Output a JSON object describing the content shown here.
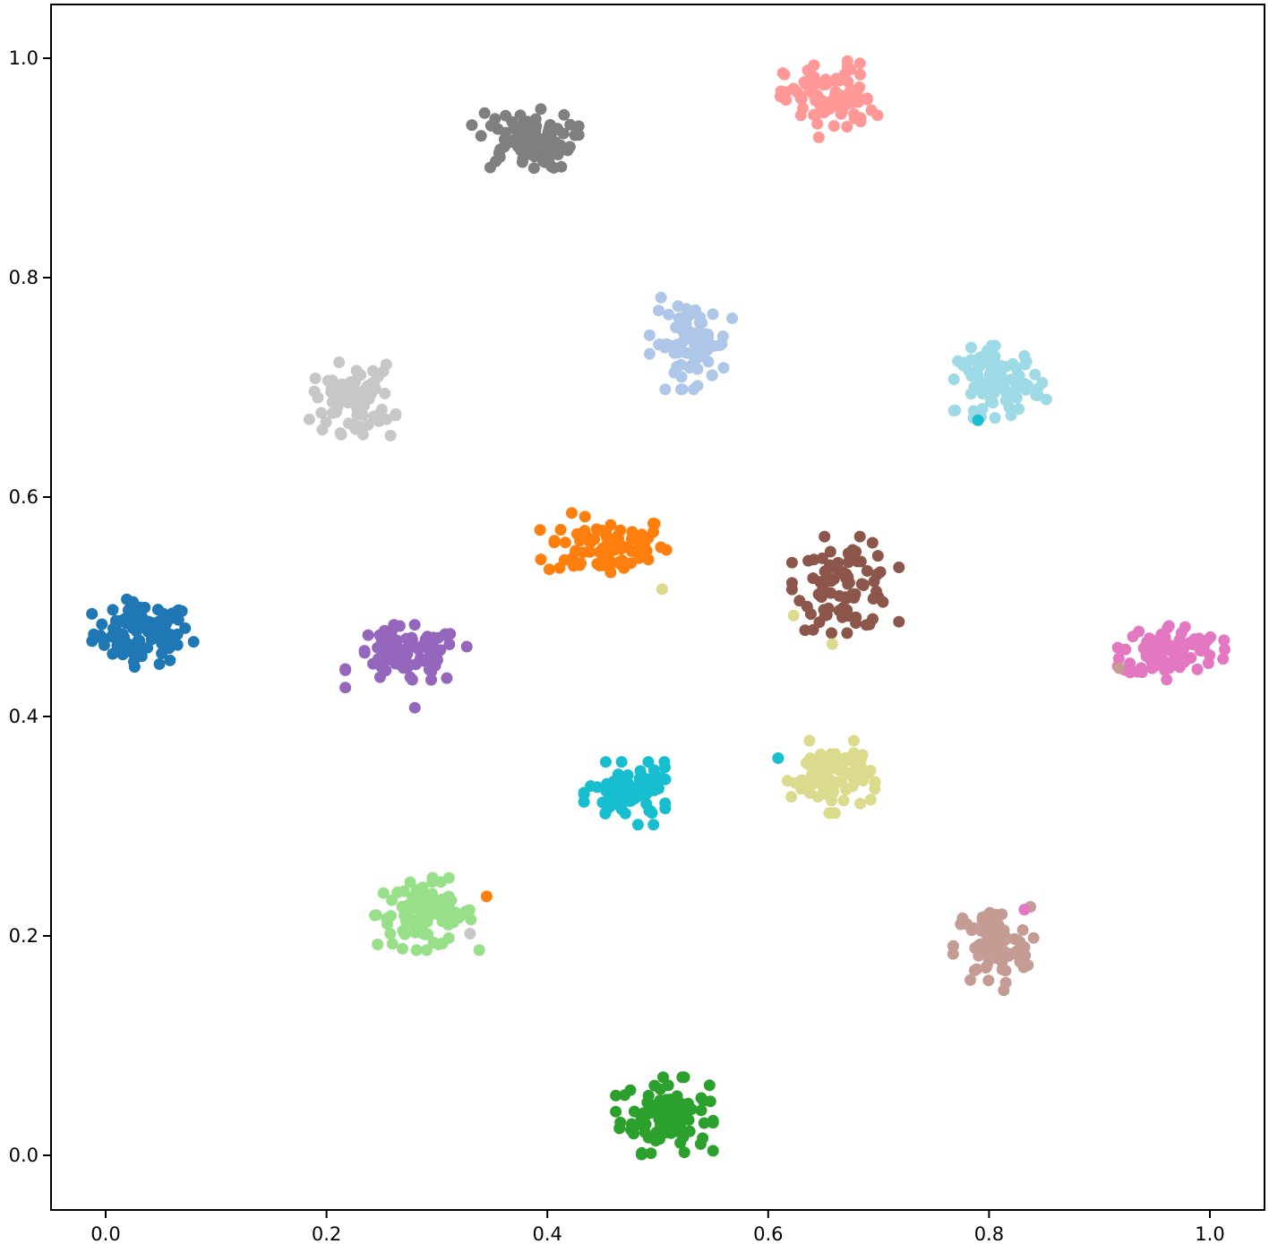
{
  "chart_data": {
    "type": "scatter",
    "title": "",
    "xlabel": "",
    "ylabel": "",
    "xlim": [
      -0.05,
      1.05
    ],
    "ylim": [
      -0.05,
      1.05
    ],
    "x_ticks": [
      "0.0",
      "0.2",
      "0.4",
      "0.6",
      "0.8",
      "1.0"
    ],
    "y_ticks": [
      "0.0",
      "0.2",
      "0.4",
      "0.6",
      "0.8",
      "1.0"
    ],
    "grid": false,
    "legend": "none",
    "clusters": [
      {
        "color": "#1f77b4",
        "center": [
          0.033,
          0.476
        ],
        "spread": [
          0.022,
          0.014
        ],
        "count": 90
      },
      {
        "color": "#ff7f0e",
        "center": [
          0.455,
          0.555
        ],
        "spread": [
          0.028,
          0.014
        ],
        "count": 85
      },
      {
        "color": "#2ca02c",
        "center": [
          0.506,
          0.036
        ],
        "spread": [
          0.02,
          0.016
        ],
        "count": 95
      },
      {
        "color": "#98df8a",
        "center": [
          0.29,
          0.22
        ],
        "spread": [
          0.022,
          0.015
        ],
        "count": 95
      },
      {
        "color": "#9467bd",
        "center": [
          0.272,
          0.455
        ],
        "spread": [
          0.025,
          0.013
        ],
        "count": 90
      },
      {
        "color": "#8c564b",
        "center": [
          0.67,
          0.52
        ],
        "spread": [
          0.022,
          0.02
        ],
        "count": 90
      },
      {
        "color": "#c49c94",
        "center": [
          0.803,
          0.19
        ],
        "spread": [
          0.017,
          0.018
        ],
        "count": 80
      },
      {
        "color": "#e377c2",
        "center": [
          0.965,
          0.46
        ],
        "spread": [
          0.022,
          0.012
        ],
        "count": 90
      },
      {
        "color": "#7f7f7f",
        "center": [
          0.38,
          0.925
        ],
        "spread": [
          0.022,
          0.013
        ],
        "count": 90
      },
      {
        "color": "#ff9896",
        "center": [
          0.655,
          0.963
        ],
        "spread": [
          0.02,
          0.016
        ],
        "count": 90
      },
      {
        "color": "#c7c7c7",
        "center": [
          0.224,
          0.69
        ],
        "spread": [
          0.018,
          0.015
        ],
        "count": 80
      },
      {
        "color": "#aec7e8",
        "center": [
          0.53,
          0.74
        ],
        "spread": [
          0.017,
          0.019
        ],
        "count": 85
      },
      {
        "color": "#9edae5",
        "center": [
          0.81,
          0.705
        ],
        "spread": [
          0.019,
          0.015
        ],
        "count": 85
      },
      {
        "color": "#dbdb8d",
        "center": [
          0.657,
          0.345
        ],
        "spread": [
          0.018,
          0.015
        ],
        "count": 85
      },
      {
        "color": "#17becf",
        "center": [
          0.475,
          0.33
        ],
        "spread": [
          0.019,
          0.013
        ],
        "count": 85
      }
    ],
    "outliers": [
      {
        "x": 0.504,
        "y": 0.516,
        "color": "#dbdb8d"
      },
      {
        "x": 0.623,
        "y": 0.492,
        "color": "#dbdb8d"
      },
      {
        "x": 0.658,
        "y": 0.466,
        "color": "#dbdb8d"
      },
      {
        "x": 0.609,
        "y": 0.362,
        "color": "#17becf"
      },
      {
        "x": 0.345,
        "y": 0.236,
        "color": "#ff7f0e"
      },
      {
        "x": 0.33,
        "y": 0.202,
        "color": "#c7c7c7"
      },
      {
        "x": 0.832,
        "y": 0.224,
        "color": "#e377c2"
      },
      {
        "x": 0.918,
        "y": 0.444,
        "color": "#c49c94"
      },
      {
        "x": 0.79,
        "y": 0.67,
        "color": "#17becf"
      },
      {
        "x": 0.258,
        "y": 0.656,
        "color": "#c7c7c7"
      },
      {
        "x": 0.28,
        "y": 0.408,
        "color": "#9467bd"
      }
    ]
  }
}
